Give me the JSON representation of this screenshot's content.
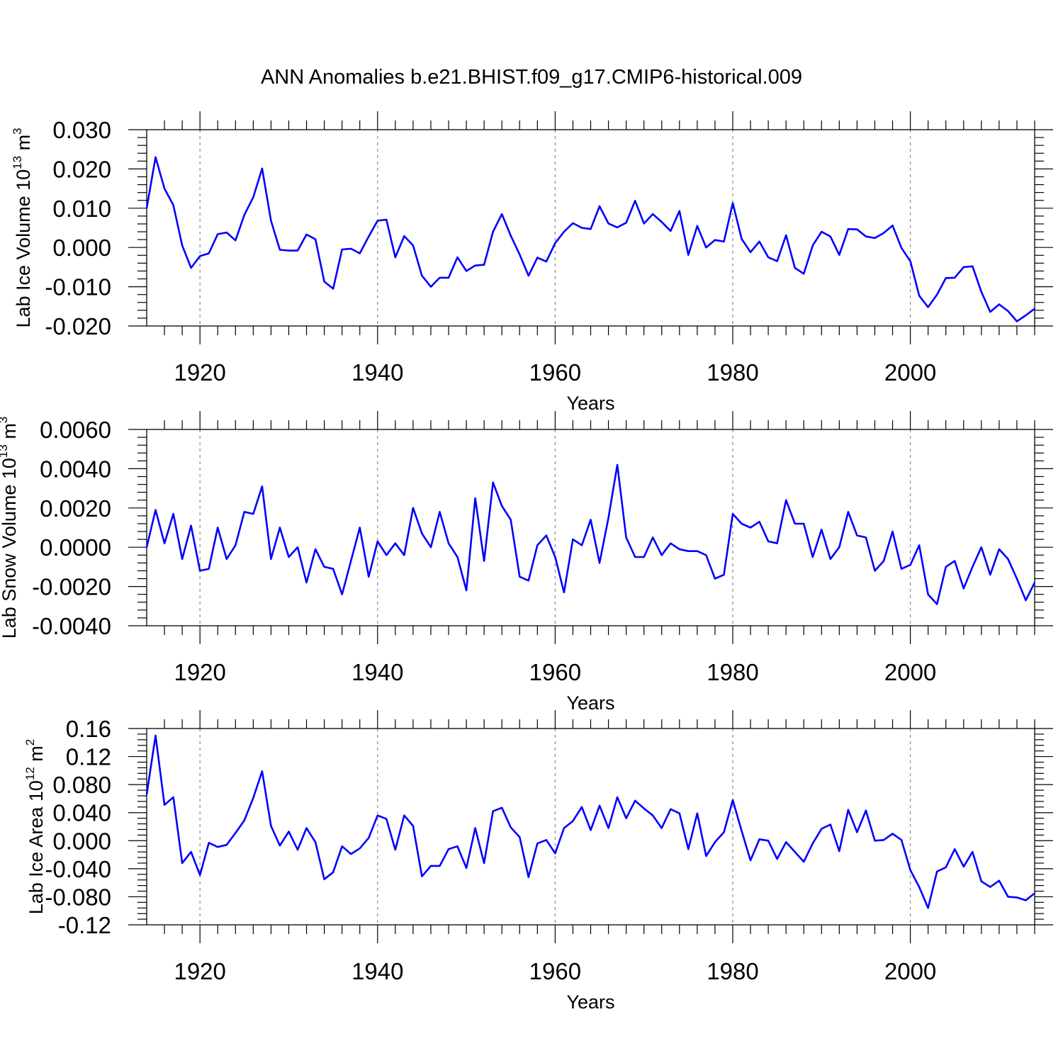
{
  "figure_title": "ANN Anomalies b.e21.BHIST.f09_g17.CMIP6-historical.009",
  "colors": {
    "line": "#0000ff",
    "axis": "#000000",
    "grid": "#888888",
    "background": "#ffffff"
  },
  "chart_data": [
    {
      "type": "line",
      "title": "ANN Anomalies b.e21.BHIST.f09_g17.CMIP6-historical.009",
      "xlabel": "Years",
      "ylabel": {
        "text": "Lab Ice Volume 10",
        "exp": "13",
        "unit": " m",
        "unit_exp": "3"
      },
      "xlim": [
        1914,
        2014
      ],
      "ylim": [
        -0.02,
        0.03
      ],
      "xticks": [
        1920,
        1940,
        1960,
        1980,
        2000
      ],
      "xtick_labels": [
        "1920",
        "1940",
        "1960",
        "1980",
        "2000"
      ],
      "yticks": [
        -0.02,
        -0.01,
        0,
        0.01,
        0.02,
        0.03
      ],
      "ytick_labels": [
        "-0.020",
        "-0.010",
        "0.000",
        "0.010",
        "0.020",
        "0.030"
      ],
      "grid": "vertical dashed at x ticks",
      "x_start": 1914,
      "series": [
        {
          "name": "Lab Ice Volume",
          "values": [
            0.01,
            0.023,
            0.015,
            0.0108,
            0.0005,
            -0.0052,
            -0.0022,
            -0.0015,
            0.0034,
            0.0038,
            0.0018,
            0.0083,
            0.0128,
            0.0201,
            0.0068,
            -0.0006,
            -0.0008,
            -0.0008,
            0.0033,
            0.0021,
            -0.0087,
            -0.0105,
            -0.0005,
            -0.0003,
            -0.0015,
            0.0028,
            0.0068,
            0.0071,
            -0.0025,
            0.0029,
            0.0005,
            -0.0072,
            -0.01,
            -0.0077,
            -0.0077,
            -0.0025,
            -0.006,
            -0.0046,
            -0.0044,
            0.004,
            0.0085,
            0.003,
            -0.0018,
            -0.0072,
            -0.0026,
            -0.0036,
            0.0011,
            0.004,
            0.0062,
            0.005,
            0.0047,
            0.0105,
            0.0061,
            0.0051,
            0.0063,
            0.0119,
            0.0061,
            0.0085,
            0.0065,
            0.0042,
            0.0093,
            -0.0019,
            0.0055,
            0.0,
            0.0019,
            0.0015,
            0.0113,
            0.0022,
            -0.0012,
            0.0015,
            -0.0025,
            -0.0035,
            0.0031,
            -0.0052,
            -0.0067,
            0.0005,
            0.004,
            0.0028,
            -0.0019,
            0.0047,
            0.0046,
            0.0028,
            0.0024,
            0.0037,
            0.0056,
            -0.0001,
            -0.0035,
            -0.0123,
            -0.0152,
            -0.012,
            -0.0078,
            -0.0077,
            -0.005,
            -0.0048,
            -0.0113,
            -0.0164,
            -0.0145,
            -0.0162,
            -0.0188,
            -0.0173,
            -0.0156
          ]
        }
      ]
    },
    {
      "type": "line",
      "xlabel": "Years",
      "ylabel": {
        "text": "Lab Snow Volume 10",
        "exp": "13",
        "unit": " m",
        "unit_exp": "3"
      },
      "xlim": [
        1914,
        2014
      ],
      "ylim": [
        -0.004,
        0.006
      ],
      "xticks": [
        1920,
        1940,
        1960,
        1980,
        2000
      ],
      "xtick_labels": [
        "1920",
        "1940",
        "1960",
        "1980",
        "2000"
      ],
      "yticks": [
        -0.004,
        -0.002,
        0,
        0.002,
        0.004,
        0.006
      ],
      "ytick_labels": [
        "-0.0040",
        "-0.0020",
        "0.0000",
        "0.0020",
        "0.0040",
        "0.0060"
      ],
      "grid": "vertical dashed at x ticks",
      "x_start": 1914,
      "series": [
        {
          "name": "Lab Snow Volume",
          "values": [
            0.0,
            0.0019,
            0.0002,
            0.0017,
            -0.0006,
            0.0011,
            -0.0012,
            -0.0011,
            0.001,
            -0.0006,
            0.0001,
            0.0018,
            0.0017,
            0.0031,
            -0.0006,
            0.001,
            -0.0005,
            0.0,
            -0.0018,
            -0.0001,
            -0.001,
            -0.0011,
            -0.0024,
            -0.0007,
            0.001,
            -0.0015,
            0.0003,
            -0.0004,
            0.0002,
            -0.0004,
            0.002,
            0.0007,
            0.0,
            0.0018,
            0.0002,
            -0.0005,
            -0.0022,
            0.0025,
            -0.0007,
            0.0033,
            0.0021,
            0.0014,
            -0.0015,
            -0.0017,
            0.0001,
            0.0006,
            -0.0005,
            -0.0023,
            0.0004,
            0.0001,
            0.0014,
            -0.0008,
            0.0015,
            0.0042,
            0.0005,
            -0.0005,
            -0.0005,
            0.0005,
            -0.0004,
            0.0002,
            -0.0001,
            -0.0002,
            -0.0002,
            -0.0004,
            -0.0016,
            -0.0014,
            0.0017,
            0.0012,
            0.001,
            0.0013,
            0.0003,
            0.0002,
            0.0024,
            0.0012,
            0.0012,
            -0.0005,
            0.0009,
            -0.0006,
            0.0,
            0.0018,
            0.0006,
            0.0005,
            -0.0012,
            -0.0007,
            0.0008,
            -0.0011,
            -0.0009,
            0.0001,
            -0.0024,
            -0.0029,
            -0.001,
            -0.0007,
            -0.0021,
            -0.001,
            0.0,
            -0.0014,
            -0.0001,
            -0.0006,
            -0.0016,
            -0.0027,
            -0.0018
          ]
        }
      ]
    },
    {
      "type": "line",
      "xlabel": "Years",
      "ylabel": {
        "text": "Lab Ice Area 10",
        "exp": "12",
        "unit": " m",
        "unit_exp": "2"
      },
      "xlim": [
        1914,
        2014
      ],
      "ylim": [
        -0.12,
        0.16
      ],
      "xticks": [
        1920,
        1940,
        1960,
        1980,
        2000
      ],
      "xtick_labels": [
        "1920",
        "1940",
        "1960",
        "1980",
        "2000"
      ],
      "yticks": [
        -0.12,
        -0.08,
        -0.04,
        0,
        0.04,
        0.08,
        0.12,
        0.16
      ],
      "ytick_labels": [
        "-0.12",
        "-0.080",
        "-0.040",
        "0.000",
        "0.040",
        "0.080",
        "0.12",
        "0.16"
      ],
      "grid": "vertical dashed at x ticks",
      "x_start": 1914,
      "series": [
        {
          "name": "Lab Ice Area",
          "values": [
            0.066,
            0.15,
            0.051,
            0.062,
            -0.032,
            -0.016,
            -0.049,
            -0.003,
            -0.009,
            -0.006,
            0.011,
            0.029,
            0.061,
            0.099,
            0.021,
            -0.007,
            0.013,
            -0.013,
            0.018,
            -0.002,
            -0.055,
            -0.045,
            -0.008,
            -0.019,
            -0.011,
            0.004,
            0.036,
            0.031,
            -0.013,
            0.036,
            0.021,
            -0.051,
            -0.036,
            -0.036,
            -0.012,
            -0.008,
            -0.039,
            0.018,
            -0.032,
            0.042,
            0.047,
            0.019,
            0.005,
            -0.052,
            -0.004,
            0.001,
            -0.018,
            0.018,
            0.028,
            0.048,
            0.015,
            0.05,
            0.018,
            0.062,
            0.032,
            0.057,
            0.046,
            0.036,
            0.018,
            0.045,
            0.039,
            -0.012,
            0.039,
            -0.022,
            -0.002,
            0.012,
            0.058,
            0.014,
            -0.028,
            0.002,
            0.0,
            -0.026,
            -0.002,
            -0.016,
            -0.03,
            -0.004,
            0.017,
            0.023,
            -0.015,
            0.044,
            0.012,
            0.043,
            0.0,
            0.001,
            0.01,
            0.001,
            -0.042,
            -0.066,
            -0.096,
            -0.044,
            -0.038,
            -0.012,
            -0.037,
            -0.016,
            -0.058,
            -0.066,
            -0.057,
            -0.08,
            -0.081,
            -0.085,
            -0.075
          ]
        }
      ]
    }
  ]
}
